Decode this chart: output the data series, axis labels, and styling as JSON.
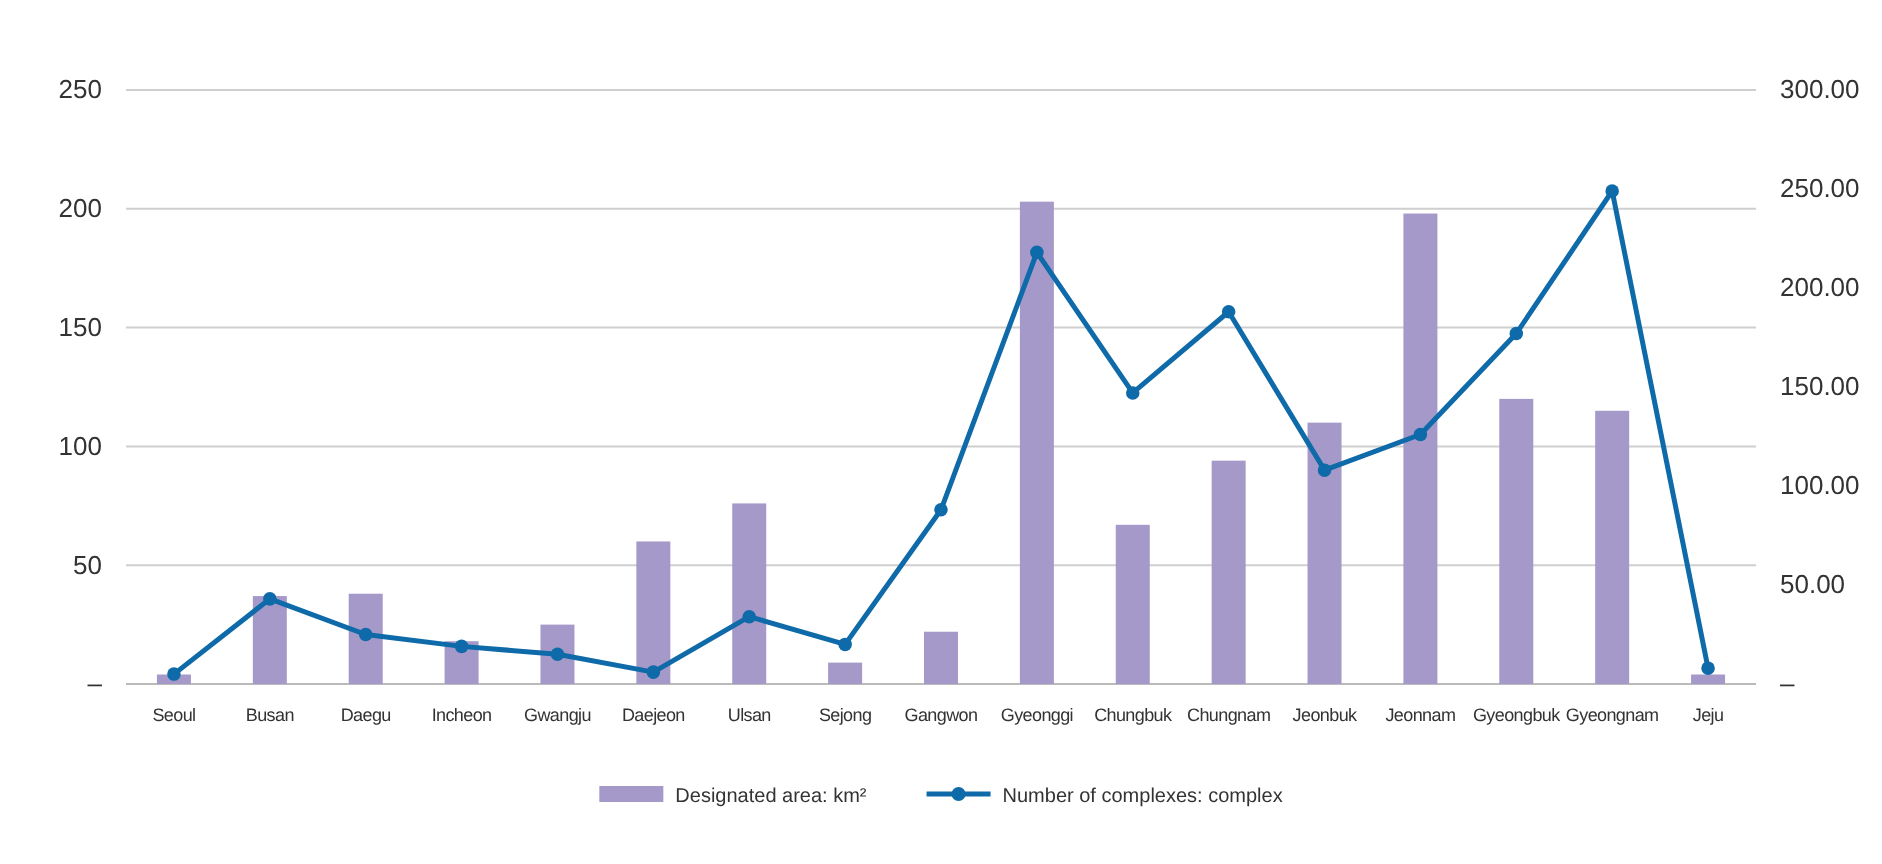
{
  "chart_data": {
    "type": "bar",
    "categories": [
      "Seoul",
      "Busan",
      "Daegu",
      "Incheon",
      "Gwangju",
      "Daejeon",
      "Ulsan",
      "Sejong",
      "Gangwon",
      "Gyeonggi",
      "Chungbuk",
      "Chungnam",
      "Jeonbuk",
      "Jeonnam",
      "Gyeongbuk",
      "Gyeongnam",
      "Jeju"
    ],
    "series": [
      {
        "name": "Designated area: km²",
        "color": "#a599c9",
        "values": [
          4,
          37,
          38,
          18,
          25,
          60,
          76,
          9,
          22,
          203,
          67,
          94,
          110,
          198,
          120,
          115,
          4
        ]
      },
      {
        "name": "Number of complexes: complex",
        "type": "line",
        "axis": "y2",
        "color": "#0e6aa8",
        "values": [
          5,
          43,
          25,
          19,
          15,
          6,
          34,
          20,
          88,
          218,
          147,
          188,
          108,
          126,
          177,
          249,
          8
        ]
      }
    ],
    "ylim": [
      0,
      250
    ],
    "yticks": [
      {
        "value": 0,
        "label": "–"
      },
      50,
      100,
      150,
      200,
      250
    ],
    "y2lim": [
      0,
      300
    ],
    "y2ticks": [
      {
        "value": 0,
        "label": "–"
      },
      {
        "value": 50,
        "label": "50.00"
      },
      {
        "value": 100,
        "label": "100.00"
      },
      {
        "value": 150,
        "label": "150.00"
      },
      {
        "value": 200,
        "label": "200.00"
      },
      {
        "value": 250,
        "label": "250.00"
      },
      {
        "value": 300,
        "label": "300.00"
      }
    ],
    "grid": "y",
    "legend": "bottom",
    "marker": "circle",
    "line_style": "solid"
  }
}
